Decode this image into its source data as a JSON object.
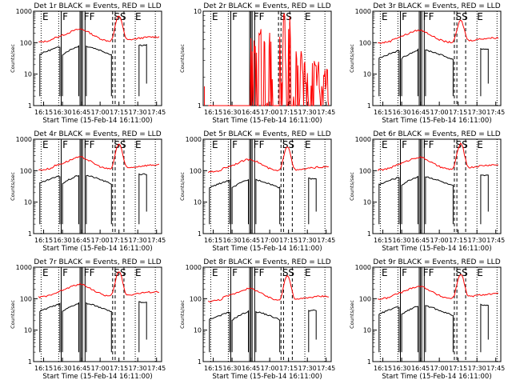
{
  "chart_data": [
    {
      "type": "line",
      "title": "Det 1r BLACK = Events, RED = LLD",
      "xlabel": "Start Time (15-Feb-14 16:11:00)",
      "ylabel": "Counts/sec",
      "x_ticks": [
        "16:15",
        "16:30",
        "16:45",
        "17:00",
        "17:15",
        "17:30",
        "17:45"
      ],
      "y_ticks": [
        "1",
        "10",
        "100",
        "1000"
      ],
      "ylim": [
        1,
        1000
      ],
      "y_scale": "log",
      "markers": [
        {
          "label": "E",
          "minute": 3
        },
        {
          "label": "F",
          "minute": 19
        },
        {
          "label": "FF",
          "minute": 36
        },
        {
          "label": "SS",
          "minute": 60
        },
        {
          "label": "E",
          "minute": 77
        }
      ],
      "events": {
        "offset": 60,
        "drops": "data"
      },
      "lld": {
        "offset": 140,
        "mode": "normal",
        "peak": 600
      }
    },
    {
      "type": "line",
      "title": "Det 2r BLACK = Events, RED = LLD",
      "xlabel": "Start Time (15-Feb-14 16:11:00)",
      "ylabel": "Counts/sec",
      "x_ticks": [
        "16:15",
        "16:30",
        "16:45",
        "17:00",
        "17:15",
        "17:30",
        "17:45"
      ],
      "y_ticks": [
        "1",
        "10"
      ],
      "ylim": [
        1,
        10
      ],
      "y_scale": "log",
      "markers": [
        {
          "label": "E",
          "minute": 3
        },
        {
          "label": "F",
          "minute": 19
        },
        {
          "label": "FF",
          "minute": 36
        },
        {
          "label": "SS",
          "minute": 57
        },
        {
          "label": "E",
          "minute": 77
        }
      ],
      "events": null,
      "lld": {
        "offset": null,
        "mode": "noisy",
        "peak": null
      }
    },
    {
      "type": "line",
      "title": "Det 3r BLACK = Events, RED = LLD",
      "xlabel": "Start Time (15-Feb-14 16:11:00)",
      "ylabel": "Counts/sec",
      "x_ticks": [
        "16:15",
        "16:30",
        "16:45",
        "17:00",
        "17:15",
        "17:30",
        "17:45"
      ],
      "y_ticks": [
        "1",
        "10",
        "100",
        "1000"
      ],
      "ylim": [
        1,
        1000
      ],
      "y_scale": "log",
      "markers": [
        {
          "label": "E",
          "minute": 3
        },
        {
          "label": "F",
          "minute": 19
        },
        {
          "label": "FF",
          "minute": 36
        },
        {
          "label": "SS",
          "minute": 62
        },
        {
          "label": "E",
          "minute": 79
        }
      ],
      "events": {
        "offset": 45,
        "drops": "data"
      },
      "lld": {
        "offset": 130,
        "mode": "normal",
        "peak": 400
      }
    },
    {
      "type": "line",
      "title": "Det 4r BLACK = Events, RED = LLD",
      "xlabel": "Start Time (15-Feb-14 16:11:00)",
      "ylabel": "Counts/sec",
      "x_ticks": [
        "16:15",
        "16:30",
        "16:45",
        "17:00",
        "17:15",
        "17:30",
        "17:45"
      ],
      "y_ticks": [
        "1",
        "10",
        "100",
        "1000"
      ],
      "ylim": [
        1,
        1000
      ],
      "y_scale": "log",
      "markers": [
        {
          "label": "E",
          "minute": 3
        },
        {
          "label": "F",
          "minute": 19
        },
        {
          "label": "FF",
          "minute": 36
        },
        {
          "label": "SS",
          "minute": 60
        },
        {
          "label": "E",
          "minute": 77
        }
      ],
      "events": {
        "offset": 55,
        "drops": "data"
      },
      "lld": {
        "offset": 140,
        "mode": "normal",
        "peak": 600
      }
    },
    {
      "type": "line",
      "title": "Det 5r BLACK = Events, RED = LLD",
      "xlabel": "Start Time (15-Feb-14 16:11:00)",
      "ylabel": "Counts/sec",
      "x_ticks": [
        "16:15",
        "16:30",
        "16:45",
        "17:00",
        "17:15",
        "17:30",
        "17:45"
      ],
      "y_ticks": [
        "1",
        "10",
        "100",
        "1000"
      ],
      "ylim": [
        1,
        1000
      ],
      "y_scale": "log",
      "markers": [
        {
          "label": "E",
          "minute": 3
        },
        {
          "label": "F",
          "minute": 19
        },
        {
          "label": "FF",
          "minute": 36
        },
        {
          "label": "SS",
          "minute": 59
        },
        {
          "label": "E",
          "minute": 77
        }
      ],
      "events": {
        "offset": 40,
        "drops": "data"
      },
      "lld": {
        "offset": 120,
        "mode": "normal",
        "peak": 500
      }
    },
    {
      "type": "line",
      "title": "Det 6r BLACK = Events, RED = LLD",
      "xlabel": "Start Time (15-Feb-14 16:11:00)",
      "ylabel": "Counts/sec",
      "x_ticks": [
        "16:15",
        "16:30",
        "16:45",
        "17:00",
        "17:15",
        "17:30",
        "17:45"
      ],
      "y_ticks": [
        "1",
        "10",
        "100",
        "1000"
      ],
      "ylim": [
        1,
        1000
      ],
      "y_scale": "log",
      "markers": [
        {
          "label": "E",
          "minute": 3
        },
        {
          "label": "F",
          "minute": 19
        },
        {
          "label": "FF",
          "minute": 36
        },
        {
          "label": "SS",
          "minute": 62
        },
        {
          "label": "E",
          "minute": 79
        }
      ],
      "events": {
        "offset": 50,
        "drops": "data"
      },
      "lld": {
        "offset": 140,
        "mode": "normal",
        "peak": 600
      }
    },
    {
      "type": "line",
      "title": "Det 7r BLACK = Events, RED = LLD",
      "xlabel": "Start Time (15-Feb-14 16:11:00)",
      "ylabel": "Counts/sec",
      "x_ticks": [
        "16:15",
        "16:30",
        "16:45",
        "17:00",
        "17:15",
        "17:30",
        "17:45"
      ],
      "y_ticks": [
        "1",
        "10",
        "100",
        "1000"
      ],
      "ylim": [
        1,
        1000
      ],
      "y_scale": "log",
      "markers": [
        {
          "label": "E",
          "minute": 3
        },
        {
          "label": "F",
          "minute": 19
        },
        {
          "label": "FF",
          "minute": 36
        },
        {
          "label": "SS",
          "minute": 60
        },
        {
          "label": "E",
          "minute": 77
        }
      ],
      "events": {
        "offset": 55,
        "drops": "data"
      },
      "lld": {
        "offset": 150,
        "mode": "normal",
        "peak": 600
      }
    },
    {
      "type": "line",
      "title": "Det 8r BLACK = Events, RED = LLD",
      "xlabel": "Start Time (15-Feb-14 16:11:00)",
      "ylabel": "Counts/sec",
      "x_ticks": [
        "16:15",
        "16:30",
        "16:45",
        "17:00",
        "17:15",
        "17:30",
        "17:45"
      ],
      "y_ticks": [
        "1",
        "10",
        "100",
        "1000"
      ],
      "ylim": [
        1,
        1000
      ],
      "y_scale": "log",
      "markers": [
        {
          "label": "E",
          "minute": 3
        },
        {
          "label": "F",
          "minute": 19
        },
        {
          "label": "FF",
          "minute": 36
        },
        {
          "label": "SS",
          "minute": 59
        },
        {
          "label": "E",
          "minute": 77
        }
      ],
      "events": {
        "offset": 30,
        "drops": "data"
      },
      "lld": {
        "offset": 110,
        "mode": "normal",
        "peak": 450
      }
    },
    {
      "type": "line",
      "title": "Det 9r BLACK = Events, RED = LLD",
      "xlabel": "Start Time (15-Feb-14 16:11:00)",
      "ylabel": "Counts/sec",
      "x_ticks": [
        "16:15",
        "16:30",
        "16:45",
        "17:00",
        "17:15",
        "17:30",
        "17:45"
      ],
      "y_ticks": [
        "1",
        "10",
        "100",
        "1000"
      ],
      "ylim": [
        1,
        1000
      ],
      "y_scale": "log",
      "markers": [
        {
          "label": "E",
          "minute": 3
        },
        {
          "label": "F",
          "minute": 19
        },
        {
          "label": "FF",
          "minute": 36
        },
        {
          "label": "SS",
          "minute": 62
        },
        {
          "label": "E",
          "minute": 79
        }
      ],
      "events": {
        "offset": 45,
        "drops": "data"
      },
      "lld": {
        "offset": 130,
        "mode": "normal",
        "peak": 500
      }
    }
  ],
  "colors": {
    "events": "#000000",
    "lld": "#ff0000"
  }
}
